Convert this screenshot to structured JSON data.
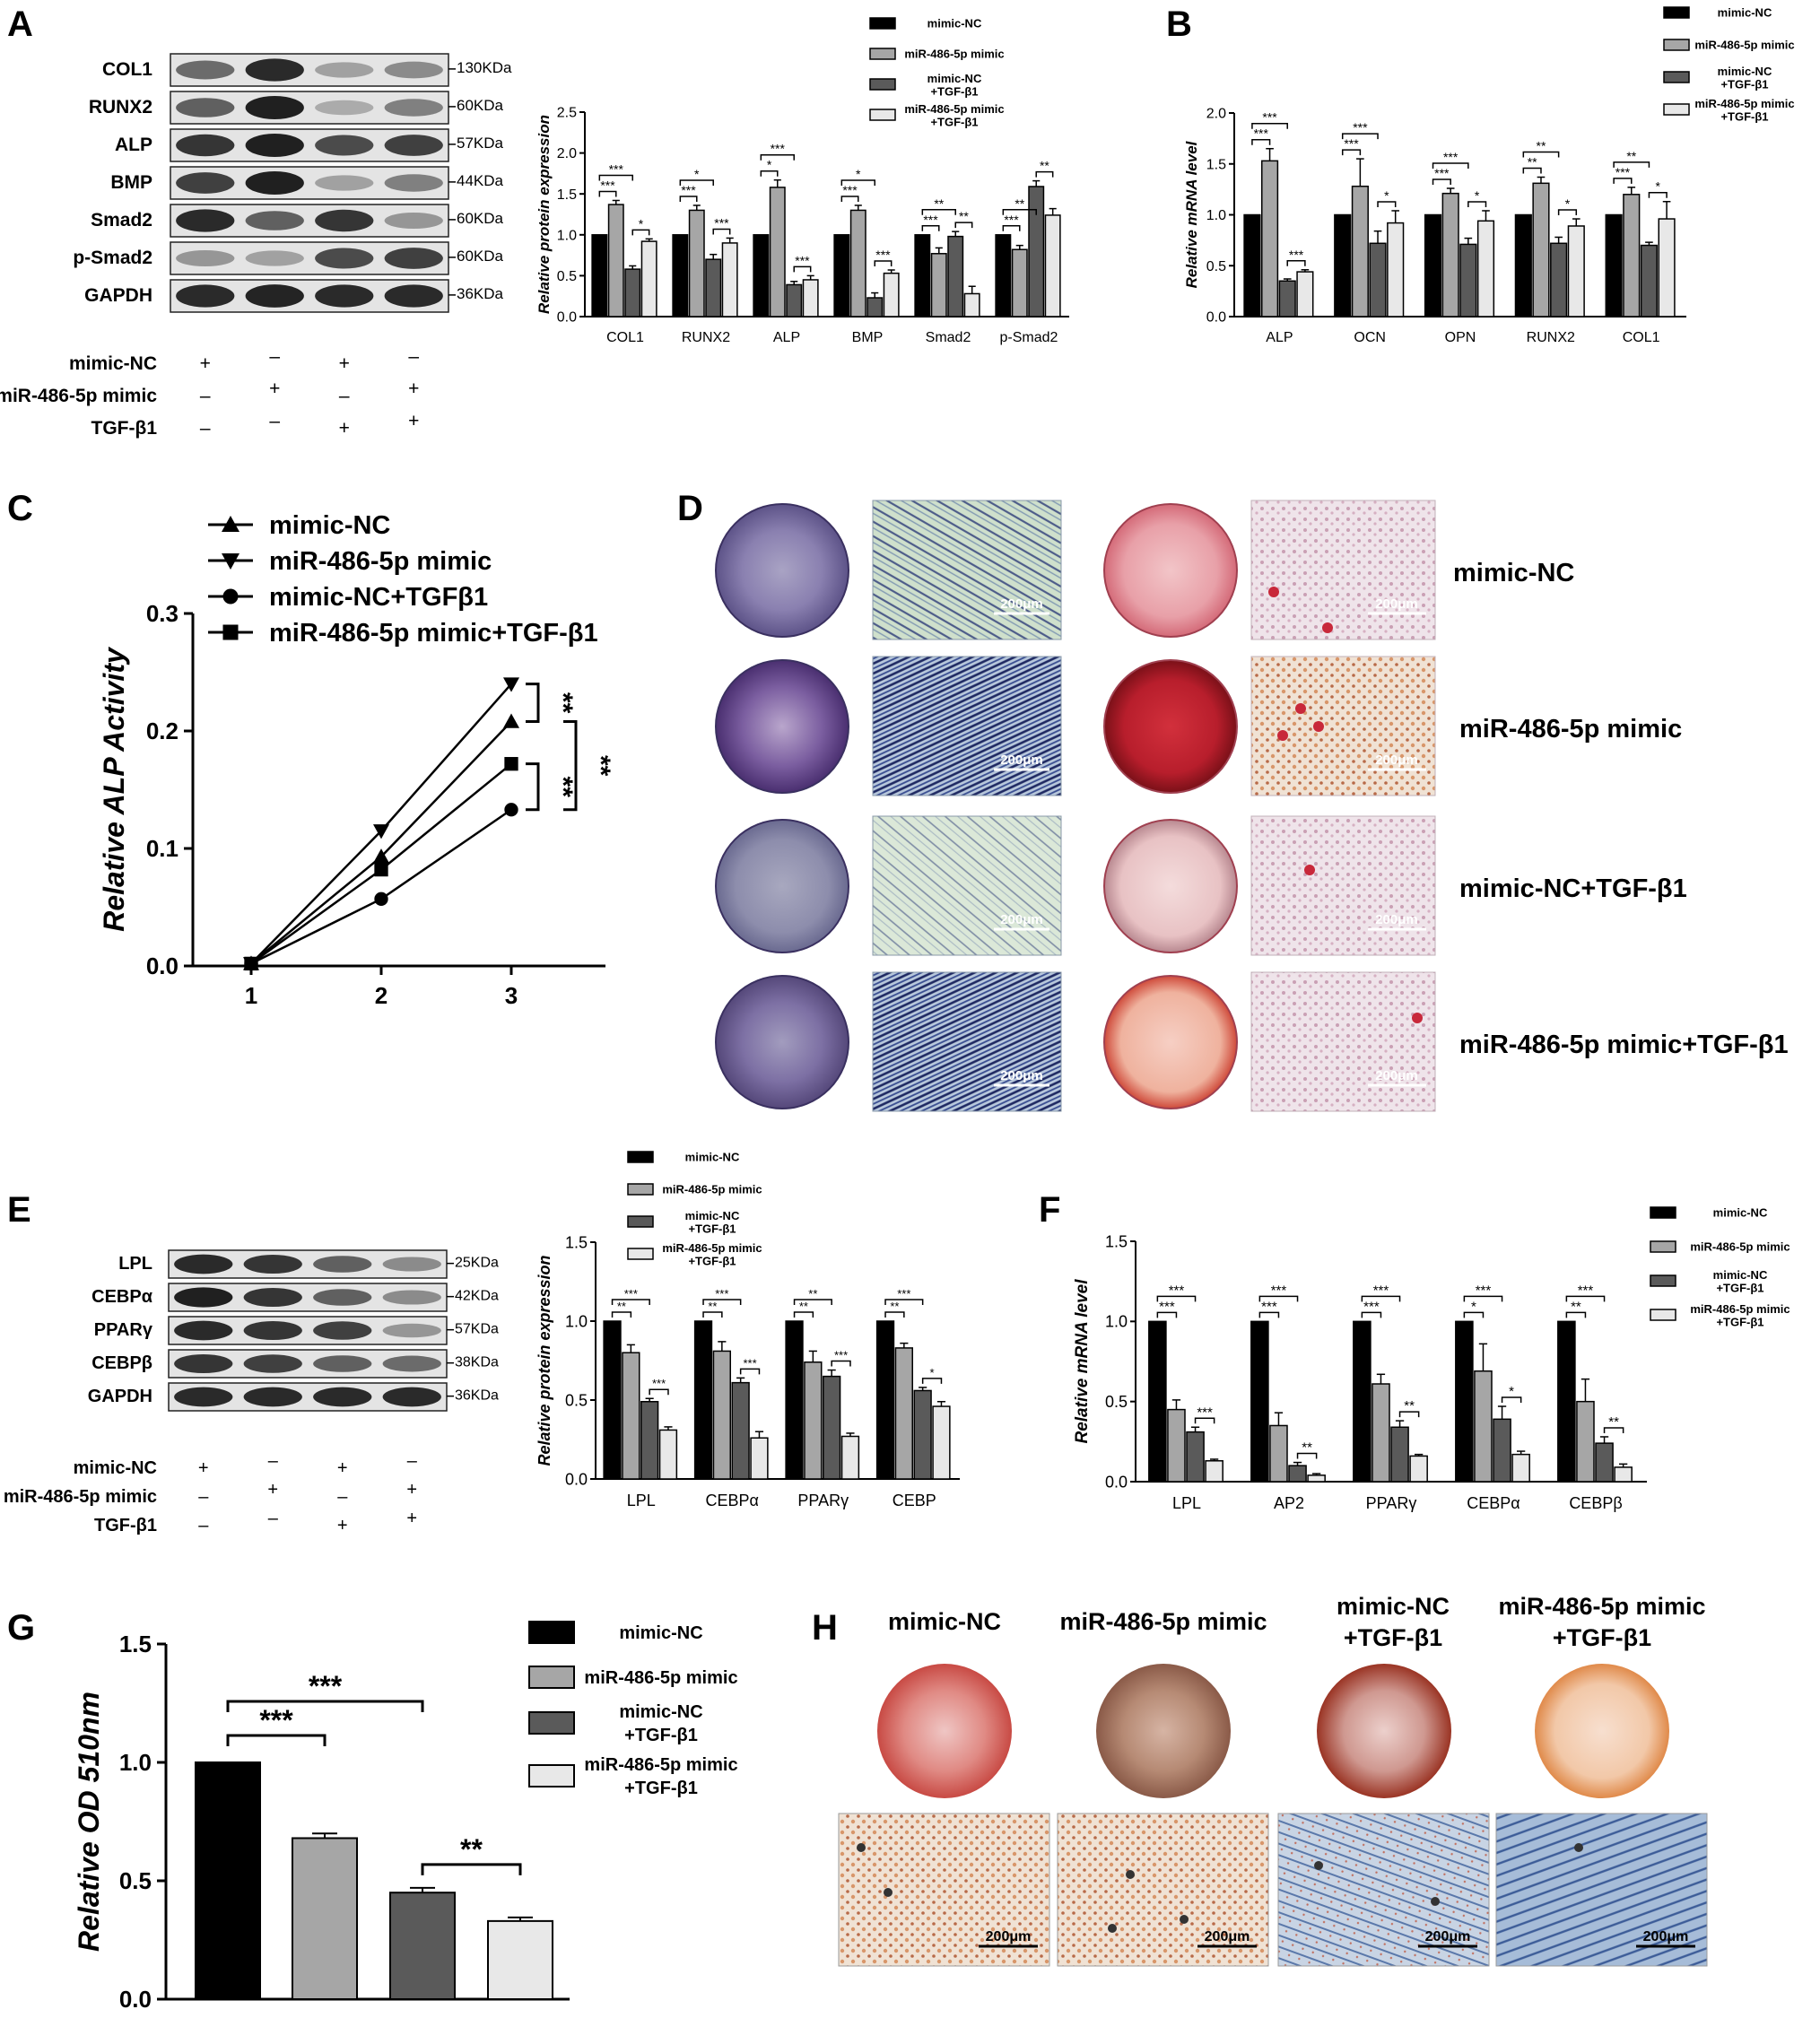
{
  "panels": {
    "A": {
      "letter": "A",
      "blot": {
        "rows": [
          {
            "name": "COL1",
            "size": "130KDa",
            "bands": [
              0.55,
              0.85,
              0.3,
              0.4
            ]
          },
          {
            "name": "RUNX2",
            "size": "60KDa",
            "bands": [
              0.6,
              0.9,
              0.25,
              0.45
            ]
          },
          {
            "name": "ALP",
            "size": "57KDa",
            "bands": [
              0.8,
              0.9,
              0.7,
              0.75
            ]
          },
          {
            "name": "BMP",
            "size": "44KDa",
            "bands": [
              0.75,
              0.9,
              0.3,
              0.45
            ]
          },
          {
            "name": "Smad2",
            "size": "60KDa",
            "bands": [
              0.85,
              0.6,
              0.8,
              0.35
            ]
          },
          {
            "name": "p-Smad2",
            "size": "60KDa",
            "bands": [
              0.35,
              0.3,
              0.7,
              0.75
            ]
          },
          {
            "name": "GAPDH",
            "size": "36KDa",
            "bands": [
              0.85,
              0.88,
              0.85,
              0.85
            ]
          }
        ],
        "conditions": [
          {
            "label": "mimic-NC",
            "signs": [
              "+",
              "–",
              "+",
              "–"
            ]
          },
          {
            "label": "miR-486-5p mimic",
            "signs": [
              "–",
              "+",
              "–",
              "+"
            ]
          },
          {
            "label": "TGF-β1",
            "signs": [
              "–",
              "–",
              "+",
              "+"
            ]
          }
        ]
      },
      "chart_data": {
        "type": "bar",
        "ylabel": "Relative protein expression",
        "ylim": [
          0,
          2.5
        ],
        "yticks": [
          "0.0",
          "0.5",
          "1.0",
          "1.5",
          "2.0",
          "2.5"
        ],
        "categories": [
          "COL1",
          "RUNX2",
          "ALP",
          "BMP",
          "Smad2",
          "p-Smad2"
        ],
        "series": [
          {
            "name": "mimic-NC",
            "values": [
              1.0,
              1.0,
              1.0,
              1.0,
              1.0,
              1.0
            ],
            "errors": [
              0,
              0,
              0,
              0,
              0,
              0
            ]
          },
          {
            "name": "miR-486-5p mimic",
            "values": [
              1.37,
              1.3,
              1.58,
              1.3,
              0.77,
              0.82
            ],
            "errors": [
              0.05,
              0.06,
              0.09,
              0.06,
              0.07,
              0.05
            ]
          },
          {
            "name": "mimic-NC +TGF-β1",
            "values": [
              0.58,
              0.7,
              0.39,
              0.23,
              0.98,
              1.59
            ],
            "errors": [
              0.04,
              0.06,
              0.04,
              0.06,
              0.06,
              0.07
            ]
          },
          {
            "name": "miR-486-5p mimic +TGF-β1",
            "values": [
              0.92,
              0.9,
              0.45,
              0.53,
              0.28,
              1.24
            ],
            "errors": [
              0.03,
              0.06,
              0.05,
              0.04,
              0.09,
              0.08
            ]
          }
        ],
        "annotations": [
          "***",
          "***",
          "*",
          "***",
          "*",
          "***",
          "*",
          "***",
          "***",
          "***",
          "*",
          "***",
          "***",
          "**",
          "**",
          "***",
          "**",
          "**",
          "**",
          "***"
        ]
      }
    },
    "B": {
      "letter": "B",
      "chart_data": {
        "type": "bar",
        "ylabel": "Relative mRNA level",
        "ylim": [
          0,
          2.0
        ],
        "yticks": [
          "0.0",
          "0.5",
          "1.0",
          "1.5",
          "2.0"
        ],
        "categories": [
          "ALP",
          "OCN",
          "OPN",
          "RUNX2",
          "COL1"
        ],
        "series": [
          {
            "name": "mimic-NC",
            "values": [
              1.0,
              1.0,
              1.0,
              1.0,
              1.0
            ],
            "errors": [
              0,
              0,
              0,
              0,
              0
            ]
          },
          {
            "name": "miR-486-5p mimic",
            "values": [
              1.53,
              1.28,
              1.21,
              1.31,
              1.2
            ],
            "errors": [
              0.12,
              0.27,
              0.05,
              0.06,
              0.07
            ]
          },
          {
            "name": "mimic-NC +TGF-β1",
            "values": [
              0.35,
              0.72,
              0.71,
              0.72,
              0.7
            ],
            "errors": [
              0.02,
              0.12,
              0.06,
              0.06,
              0.03
            ]
          },
          {
            "name": "miR-486-5p mimic +TGF-β1",
            "values": [
              0.44,
              0.92,
              0.94,
              0.89,
              0.96
            ],
            "errors": [
              0.02,
              0.12,
              0.1,
              0.07,
              0.17
            ]
          }
        ],
        "annotations": [
          "***",
          "***",
          "***",
          "***",
          "***",
          "*",
          "***",
          "***",
          "*",
          "**",
          "**",
          "*",
          "***",
          "**",
          "*"
        ]
      }
    },
    "C": {
      "letter": "C",
      "chart_data": {
        "type": "line",
        "ylabel": "Relative ALP Activity",
        "x": [
          1,
          2,
          3
        ],
        "xticks": [
          "1",
          "2",
          "3"
        ],
        "ylim": [
          0,
          0.3
        ],
        "yticks": [
          "0.0",
          "0.1",
          "0.2",
          "0.3"
        ],
        "series": [
          {
            "name": "mimic-NC",
            "marker": "triangle-up",
            "values": [
              0.002,
              0.093,
              0.208
            ]
          },
          {
            "name": "miR-486-5p mimic",
            "marker": "triangle-down",
            "values": [
              0.002,
              0.115,
              0.24
            ]
          },
          {
            "name": "mimic-NC+TGFβ1",
            "marker": "circle",
            "values": [
              0.002,
              0.057,
              0.133
            ]
          },
          {
            "name": "miR-486-5p mimic+TGF-β1",
            "marker": "square",
            "values": [
              0.002,
              0.082,
              0.172
            ]
          }
        ],
        "annotations": [
          "**",
          "**",
          "**"
        ]
      }
    },
    "D": {
      "letter": "D",
      "scale": "200μm",
      "rows": [
        "mimic-NC",
        "miR-486-5p mimic",
        "mimic-NC+TGF-β1",
        "miR-486-5p mimic+TGF-β1"
      ],
      "colors": {
        "alp_stain": "#6a5aa0",
        "alizarin": "#c8283a"
      }
    },
    "E": {
      "letter": "E",
      "blot": {
        "rows": [
          {
            "name": "LPL",
            "size": "25KDa",
            "bands": [
              0.85,
              0.8,
              0.6,
              0.4
            ]
          },
          {
            "name": "CEBPα",
            "size": "42KDa",
            "bands": [
              0.9,
              0.8,
              0.6,
              0.4
            ]
          },
          {
            "name": "PPARγ",
            "size": "57KDa",
            "bands": [
              0.85,
              0.8,
              0.75,
              0.35
            ]
          },
          {
            "name": "CEBPβ",
            "size": "38KDa",
            "bands": [
              0.8,
              0.75,
              0.6,
              0.55
            ]
          },
          {
            "name": "GAPDH",
            "size": "36KDa",
            "bands": [
              0.85,
              0.85,
              0.85,
              0.85
            ]
          }
        ],
        "conditions": [
          {
            "label": "mimic-NC",
            "signs": [
              "+",
              "–",
              "+",
              "–"
            ]
          },
          {
            "label": "miR-486-5p mimic",
            "signs": [
              "–",
              "+",
              "–",
              "+"
            ]
          },
          {
            "label": "TGF-β1",
            "signs": [
              "–",
              "–",
              "+",
              "+"
            ]
          }
        ]
      },
      "chart_data": {
        "type": "bar",
        "ylabel": "Relative protein expression",
        "ylim": [
          0,
          1.5
        ],
        "yticks": [
          "0.0",
          "0.5",
          "1.0",
          "1.5"
        ],
        "categories": [
          "LPL",
          "CEBPα",
          "PPARγ",
          "CEBP"
        ],
        "series": [
          {
            "name": "mimic-NC",
            "values": [
              1.0,
              1.0,
              1.0,
              1.0
            ],
            "errors": [
              0,
              0,
              0,
              0
            ]
          },
          {
            "name": "miR-486-5p mimic",
            "values": [
              0.8,
              0.81,
              0.74,
              0.83
            ],
            "errors": [
              0.05,
              0.06,
              0.07,
              0.03
            ]
          },
          {
            "name": "mimic-NC +TGF-β1",
            "values": [
              0.49,
              0.61,
              0.65,
              0.56
            ],
            "errors": [
              0.02,
              0.03,
              0.04,
              0.02
            ]
          },
          {
            "name": "miR-486-5p mimic +TGF-β1",
            "values": [
              0.31,
              0.26,
              0.27,
              0.46
            ],
            "errors": [
              0.02,
              0.04,
              0.02,
              0.03
            ]
          }
        ],
        "annotations": [
          "**",
          "***",
          "***",
          "**",
          "***",
          "***",
          "**",
          "**",
          "***",
          "**",
          "***",
          "*"
        ]
      }
    },
    "F": {
      "letter": "F",
      "chart_data": {
        "type": "bar",
        "ylabel": "Relative mRNA level",
        "ylim": [
          0,
          1.5
        ],
        "yticks": [
          "0.0",
          "0.5",
          "1.0",
          "1.5"
        ],
        "categories": [
          "LPL",
          "AP2",
          "PPARγ",
          "CEBPα",
          "CEBPβ"
        ],
        "series": [
          {
            "name": "mimic-NC",
            "values": [
              1.0,
              1.0,
              1.0,
              1.0,
              1.0
            ],
            "errors": [
              0,
              0,
              0,
              0,
              0
            ]
          },
          {
            "name": "miR-486-5p mimic",
            "values": [
              0.45,
              0.35,
              0.61,
              0.69,
              0.5
            ],
            "errors": [
              0.06,
              0.08,
              0.06,
              0.17,
              0.14
            ]
          },
          {
            "name": "mimic-NC +TGF-β1",
            "values": [
              0.31,
              0.1,
              0.34,
              0.39,
              0.24
            ],
            "errors": [
              0.03,
              0.02,
              0.04,
              0.08,
              0.04
            ]
          },
          {
            "name": "miR-486-5p mimic +TGF-β1",
            "values": [
              0.13,
              0.04,
              0.16,
              0.17,
              0.09
            ],
            "errors": [
              0.01,
              0.01,
              0.01,
              0.02,
              0.02
            ]
          }
        ],
        "annotations": [
          "***",
          "***",
          "***",
          "***",
          "***",
          "**",
          "***",
          "***",
          "**",
          "*",
          "***",
          "*",
          "**",
          "***",
          "**"
        ]
      }
    },
    "G": {
      "letter": "G",
      "chart_data": {
        "type": "bar",
        "ylabel": "Relative OD 510nm",
        "ylim": [
          0,
          1.5
        ],
        "yticks": [
          "0.0",
          "0.5",
          "1.0",
          "1.5"
        ],
        "categories": [
          "mimic-NC",
          "miR-486-5p mimic",
          "mimic-NC +TGF-β1",
          "miR-486-5p mimic +TGF-β1"
        ],
        "values": [
          1.0,
          0.68,
          0.45,
          0.33
        ],
        "errors": [
          0,
          0.02,
          0.02,
          0.015
        ],
        "annotations": [
          "***",
          "***",
          "**"
        ]
      }
    },
    "H": {
      "letter": "H",
      "scale": "200μm",
      "columns": [
        "mimic-NC",
        "miR-486-5p mimic",
        "mimic-NC +TGF-β1",
        "miR-486-5p mimic +TGF-β1"
      ],
      "colors": {
        "oil_red": "#c0402a",
        "cells": "#5a7aa8"
      }
    }
  },
  "legend": {
    "fills": [
      "#000000",
      "#a6a6a6",
      "#5a5a5a",
      "#e8e8e8"
    ],
    "labels": [
      "mimic-NC",
      "miR-486-5p mimic",
      "mimic-NC +TGF-β1",
      "miR-486-5p mimic +TGF-β1"
    ]
  }
}
